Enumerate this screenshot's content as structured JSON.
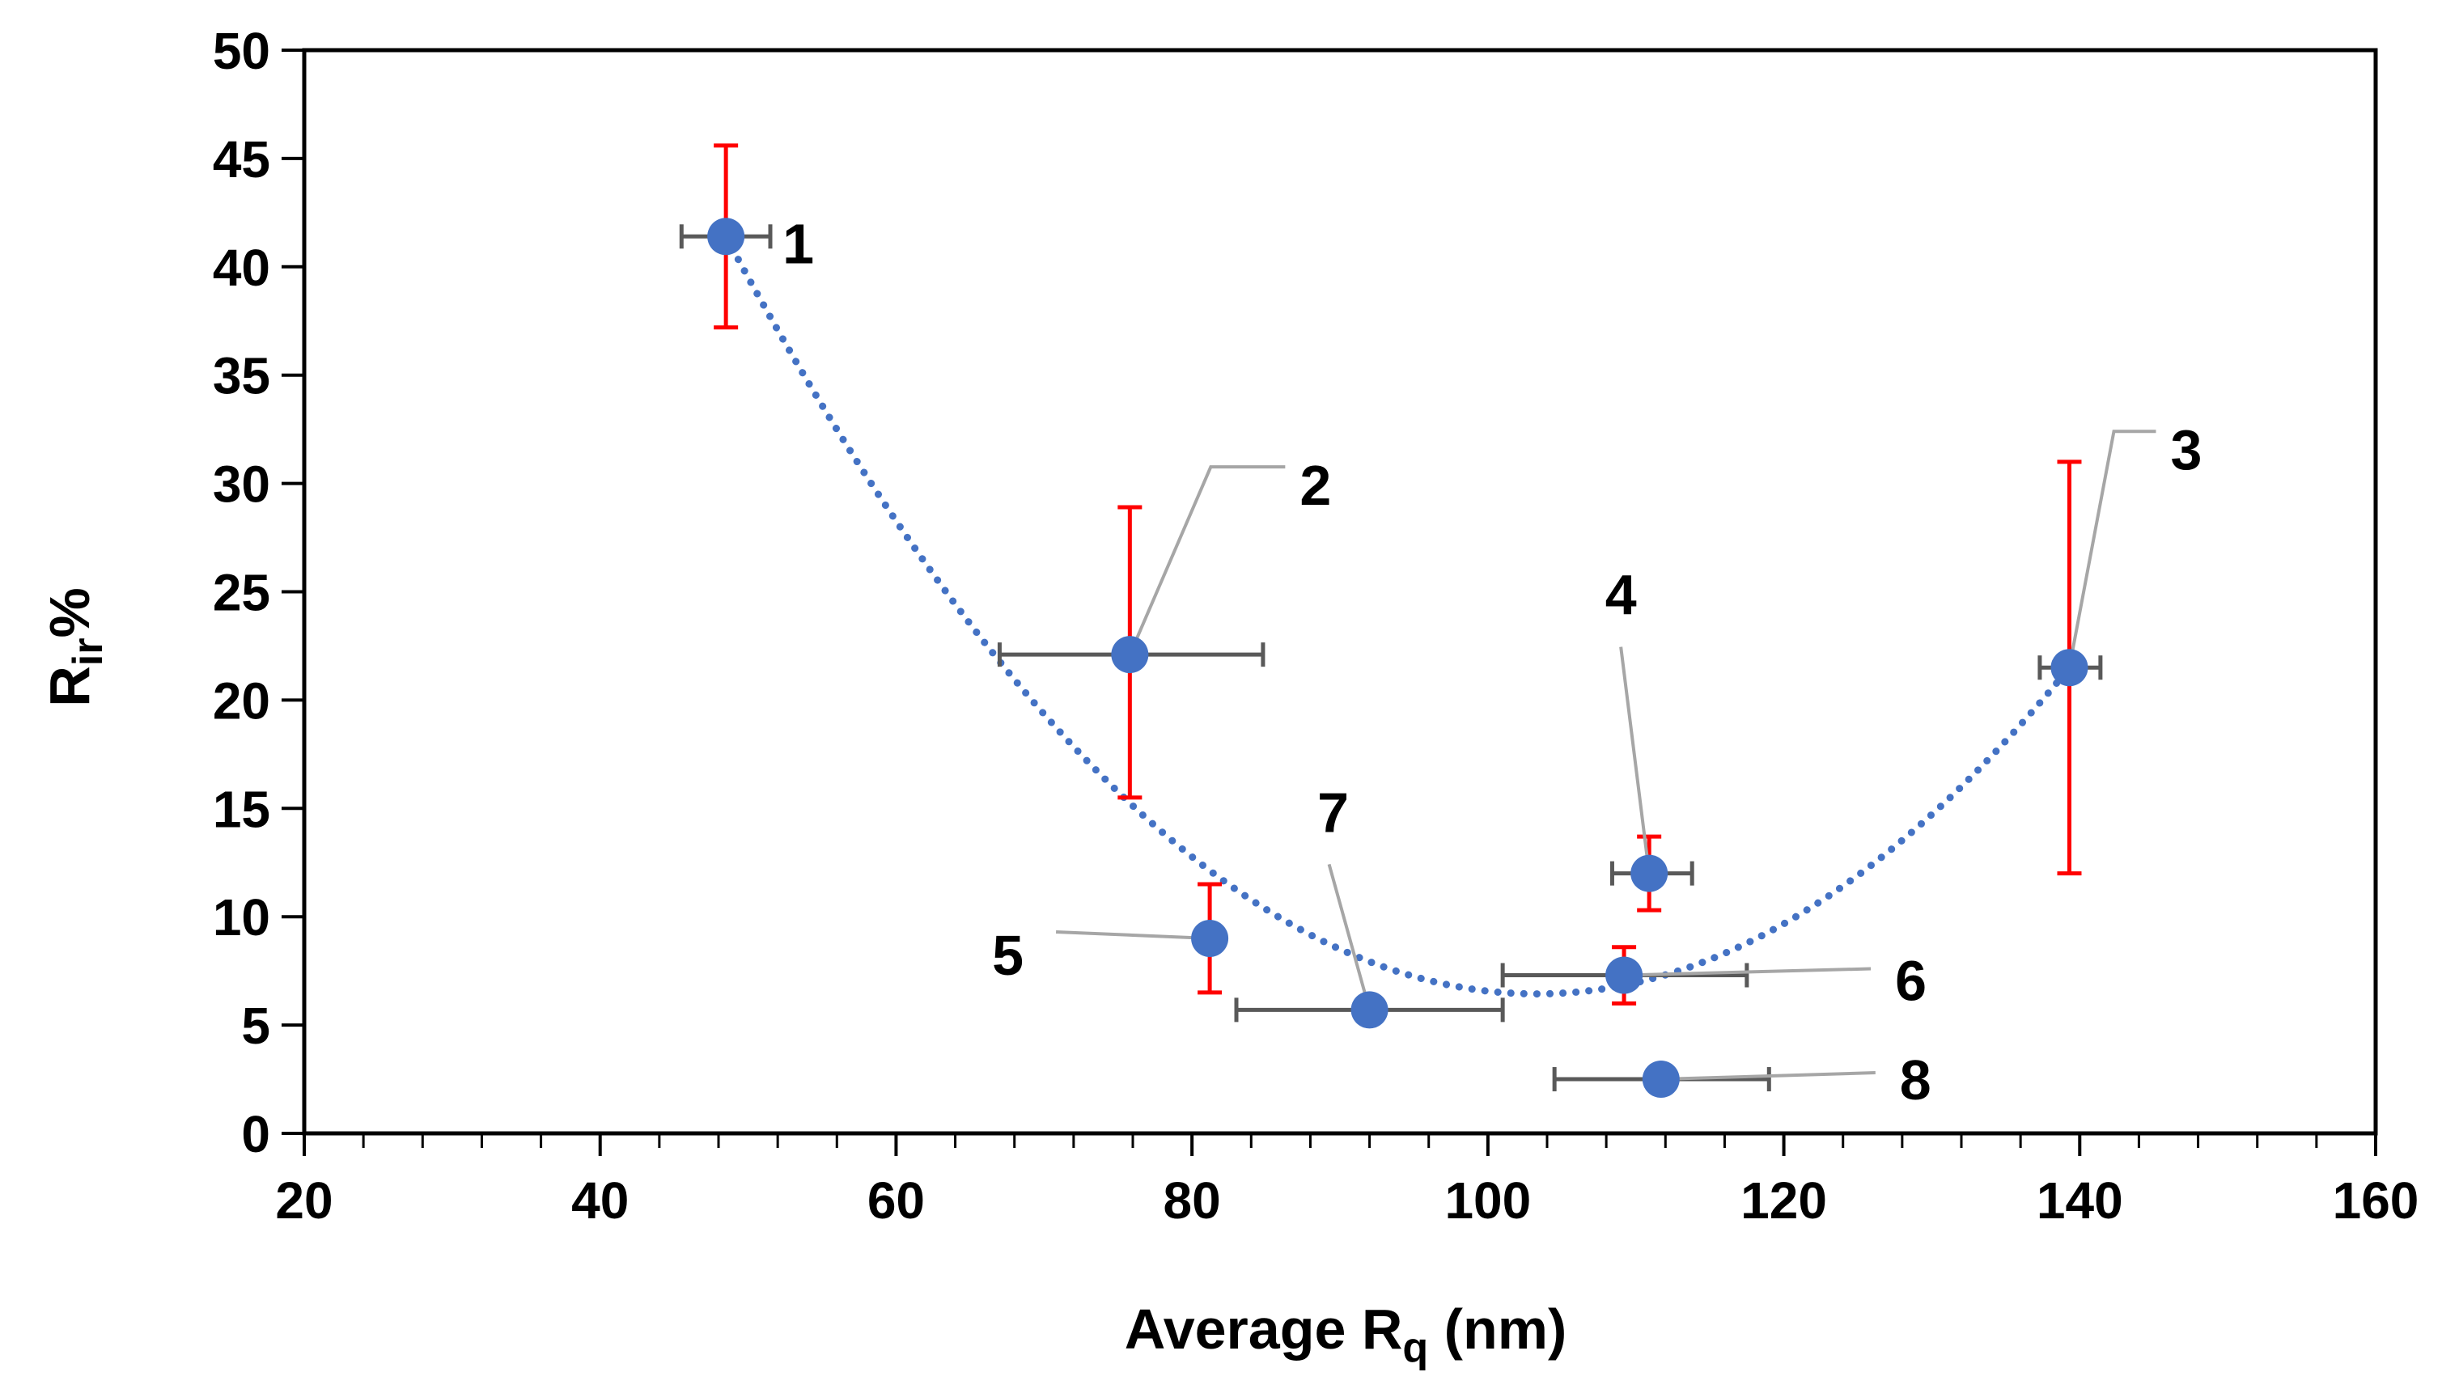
{
  "chart_data": {
    "type": "scatter",
    "title": "",
    "xlabel": {
      "main": "Average R",
      "sub": "q",
      "suffix": " (nm)"
    },
    "ylabel": {
      "main": "R",
      "sub": "ir",
      "suffix": "%"
    },
    "xlim": [
      20,
      160
    ],
    "ylim": [
      0,
      50
    ],
    "x_ticks": [
      "20",
      "40",
      "60",
      "80",
      "100",
      "120",
      "140",
      "160"
    ],
    "y_ticks": [
      "0",
      "5",
      "10",
      "15",
      "20",
      "25",
      "30",
      "35",
      "40",
      "45",
      "50"
    ],
    "grid": false,
    "legend": "none",
    "colors": {
      "marker": "#4472C4",
      "trendline": "#4472C4",
      "y_error": "#FF0000",
      "x_error": "#595959",
      "leader": "#A6A6A6",
      "axis": "#000000"
    },
    "points": [
      {
        "label": "1",
        "x": 48.5,
        "y": 41.4,
        "x_err": [
          45.5,
          51.5
        ],
        "y_err": [
          37.2,
          45.6
        ]
      },
      {
        "label": "2",
        "x": 75.8,
        "y": 22.1,
        "x_err": [
          67.0,
          84.8
        ],
        "y_err": [
          15.5,
          28.9
        ]
      },
      {
        "label": "3",
        "x": 139.3,
        "y": 21.5,
        "x_err": [
          137.3,
          141.4
        ],
        "y_err": [
          12.0,
          31.0
        ]
      },
      {
        "label": "4",
        "x": 110.9,
        "y": 12.0,
        "x_err": [
          108.4,
          113.8
        ],
        "y_err": [
          10.3,
          13.7
        ]
      },
      {
        "label": "5",
        "x": 81.2,
        "y": 9.0,
        "x_err": null,
        "y_err": [
          6.5,
          11.5
        ]
      },
      {
        "label": "6",
        "x": 109.2,
        "y": 7.3,
        "x_err": [
          101.0,
          117.5
        ],
        "y_err": [
          6.0,
          8.6
        ]
      },
      {
        "label": "7",
        "x": 92.0,
        "y": 5.7,
        "x_err": [
          83.0,
          101.0
        ],
        "y_err": null
      },
      {
        "label": "8",
        "x": 111.7,
        "y": 2.5,
        "x_err": [
          104.5,
          119.0
        ],
        "y_err": null
      }
    ],
    "trendline": {
      "type": "polynomial",
      "order": 2,
      "style": "dotted",
      "x_range": [
        48.5,
        139.3
      ],
      "points": [
        [
          48.5,
          41.4
        ],
        [
          101.0,
          6.5
        ],
        [
          139.3,
          21.5
        ]
      ]
    }
  }
}
